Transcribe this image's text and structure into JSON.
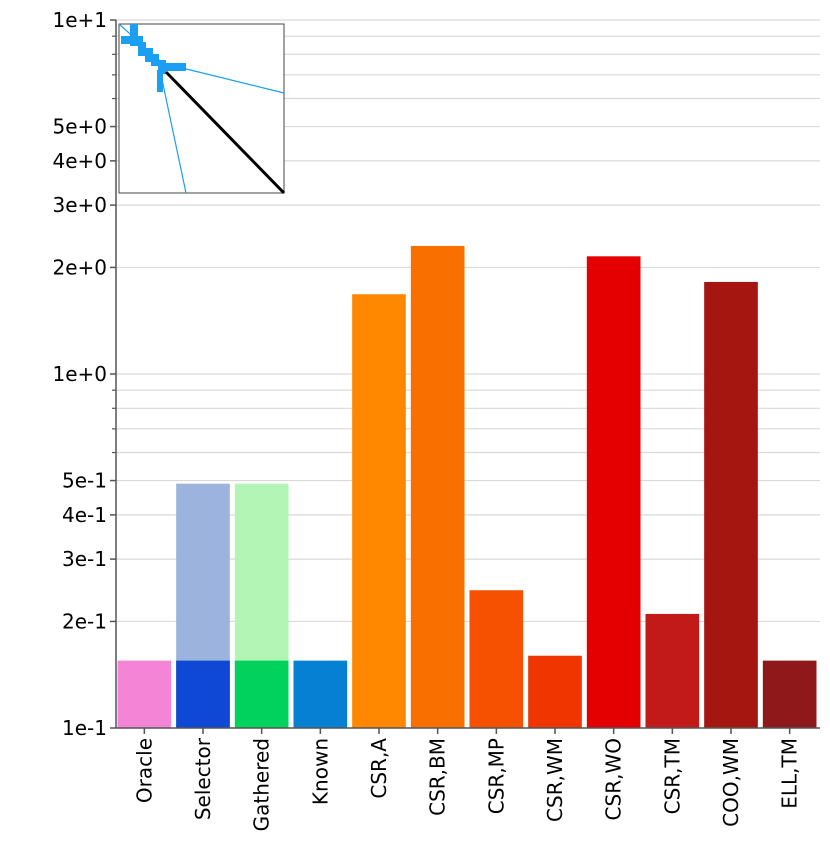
{
  "chart_data": {
    "type": "bar",
    "title": "",
    "xlabel": "",
    "ylabel": "",
    "yscale": "log",
    "ylim": [
      0.1,
      10
    ],
    "grid": true,
    "y_ticks": [
      {
        "value": 10,
        "label": "1e+1"
      },
      {
        "value": 5,
        "label": "5e+0"
      },
      {
        "value": 4,
        "label": "4e+0"
      },
      {
        "value": 3,
        "label": "3e+0"
      },
      {
        "value": 2,
        "label": "2e+0"
      },
      {
        "value": 1,
        "label": "1e+0"
      },
      {
        "value": 0.5,
        "label": "5e-1"
      },
      {
        "value": 0.4,
        "label": "4e-1"
      },
      {
        "value": 0.3,
        "label": "3e-1"
      },
      {
        "value": 0.2,
        "label": "2e-1"
      },
      {
        "value": 0.1,
        "label": "1e-1"
      }
    ],
    "minor_ticks": [
      6,
      7,
      8,
      9,
      0.6,
      0.7,
      0.8,
      0.9
    ],
    "categories": [
      "Oracle",
      "Selector",
      "Gathered",
      "Known",
      "CSR,A",
      "CSR,BM",
      "CSR,MP",
      "CSR,WM",
      "CSR,WO",
      "CSR,TM",
      "COO,WM",
      "ELL,TM"
    ],
    "bars": [
      {
        "category": "Oracle",
        "value": 0.155,
        "color": "#f384d6"
      },
      {
        "category": "Selector",
        "value": 0.155,
        "overlay_value": 0.49,
        "color": "#0e48d5",
        "overlay_color": "#9bb3dd"
      },
      {
        "category": "Gathered",
        "value": 0.155,
        "overlay_value": 0.49,
        "color": "#00d35d",
        "overlay_color": "#b3f5b4"
      },
      {
        "category": "Known",
        "value": 0.155,
        "color": "#0580d2"
      },
      {
        "category": "CSR,A",
        "value": 1.68,
        "color": "#ff8800"
      },
      {
        "category": "CSR,BM",
        "value": 2.3,
        "color": "#f97000"
      },
      {
        "category": "CSR,MP",
        "value": 0.245,
        "color": "#f55100"
      },
      {
        "category": "CSR,WM",
        "value": 0.16,
        "color": "#f03500"
      },
      {
        "category": "CSR,WO",
        "value": 2.15,
        "color": "#e50000"
      },
      {
        "category": "CSR,TM",
        "value": 0.21,
        "color": "#c21a18"
      },
      {
        "category": "COO,WM",
        "value": 1.82,
        "color": "#a61611"
      },
      {
        "category": "ELL,TM",
        "value": 0.155,
        "color": "#8f181a"
      }
    ],
    "inset": {
      "description_visible": false,
      "block_color": "#1a9ff2",
      "diagonal_color": "#000000",
      "line_color": "#1a9ff2"
    }
  }
}
